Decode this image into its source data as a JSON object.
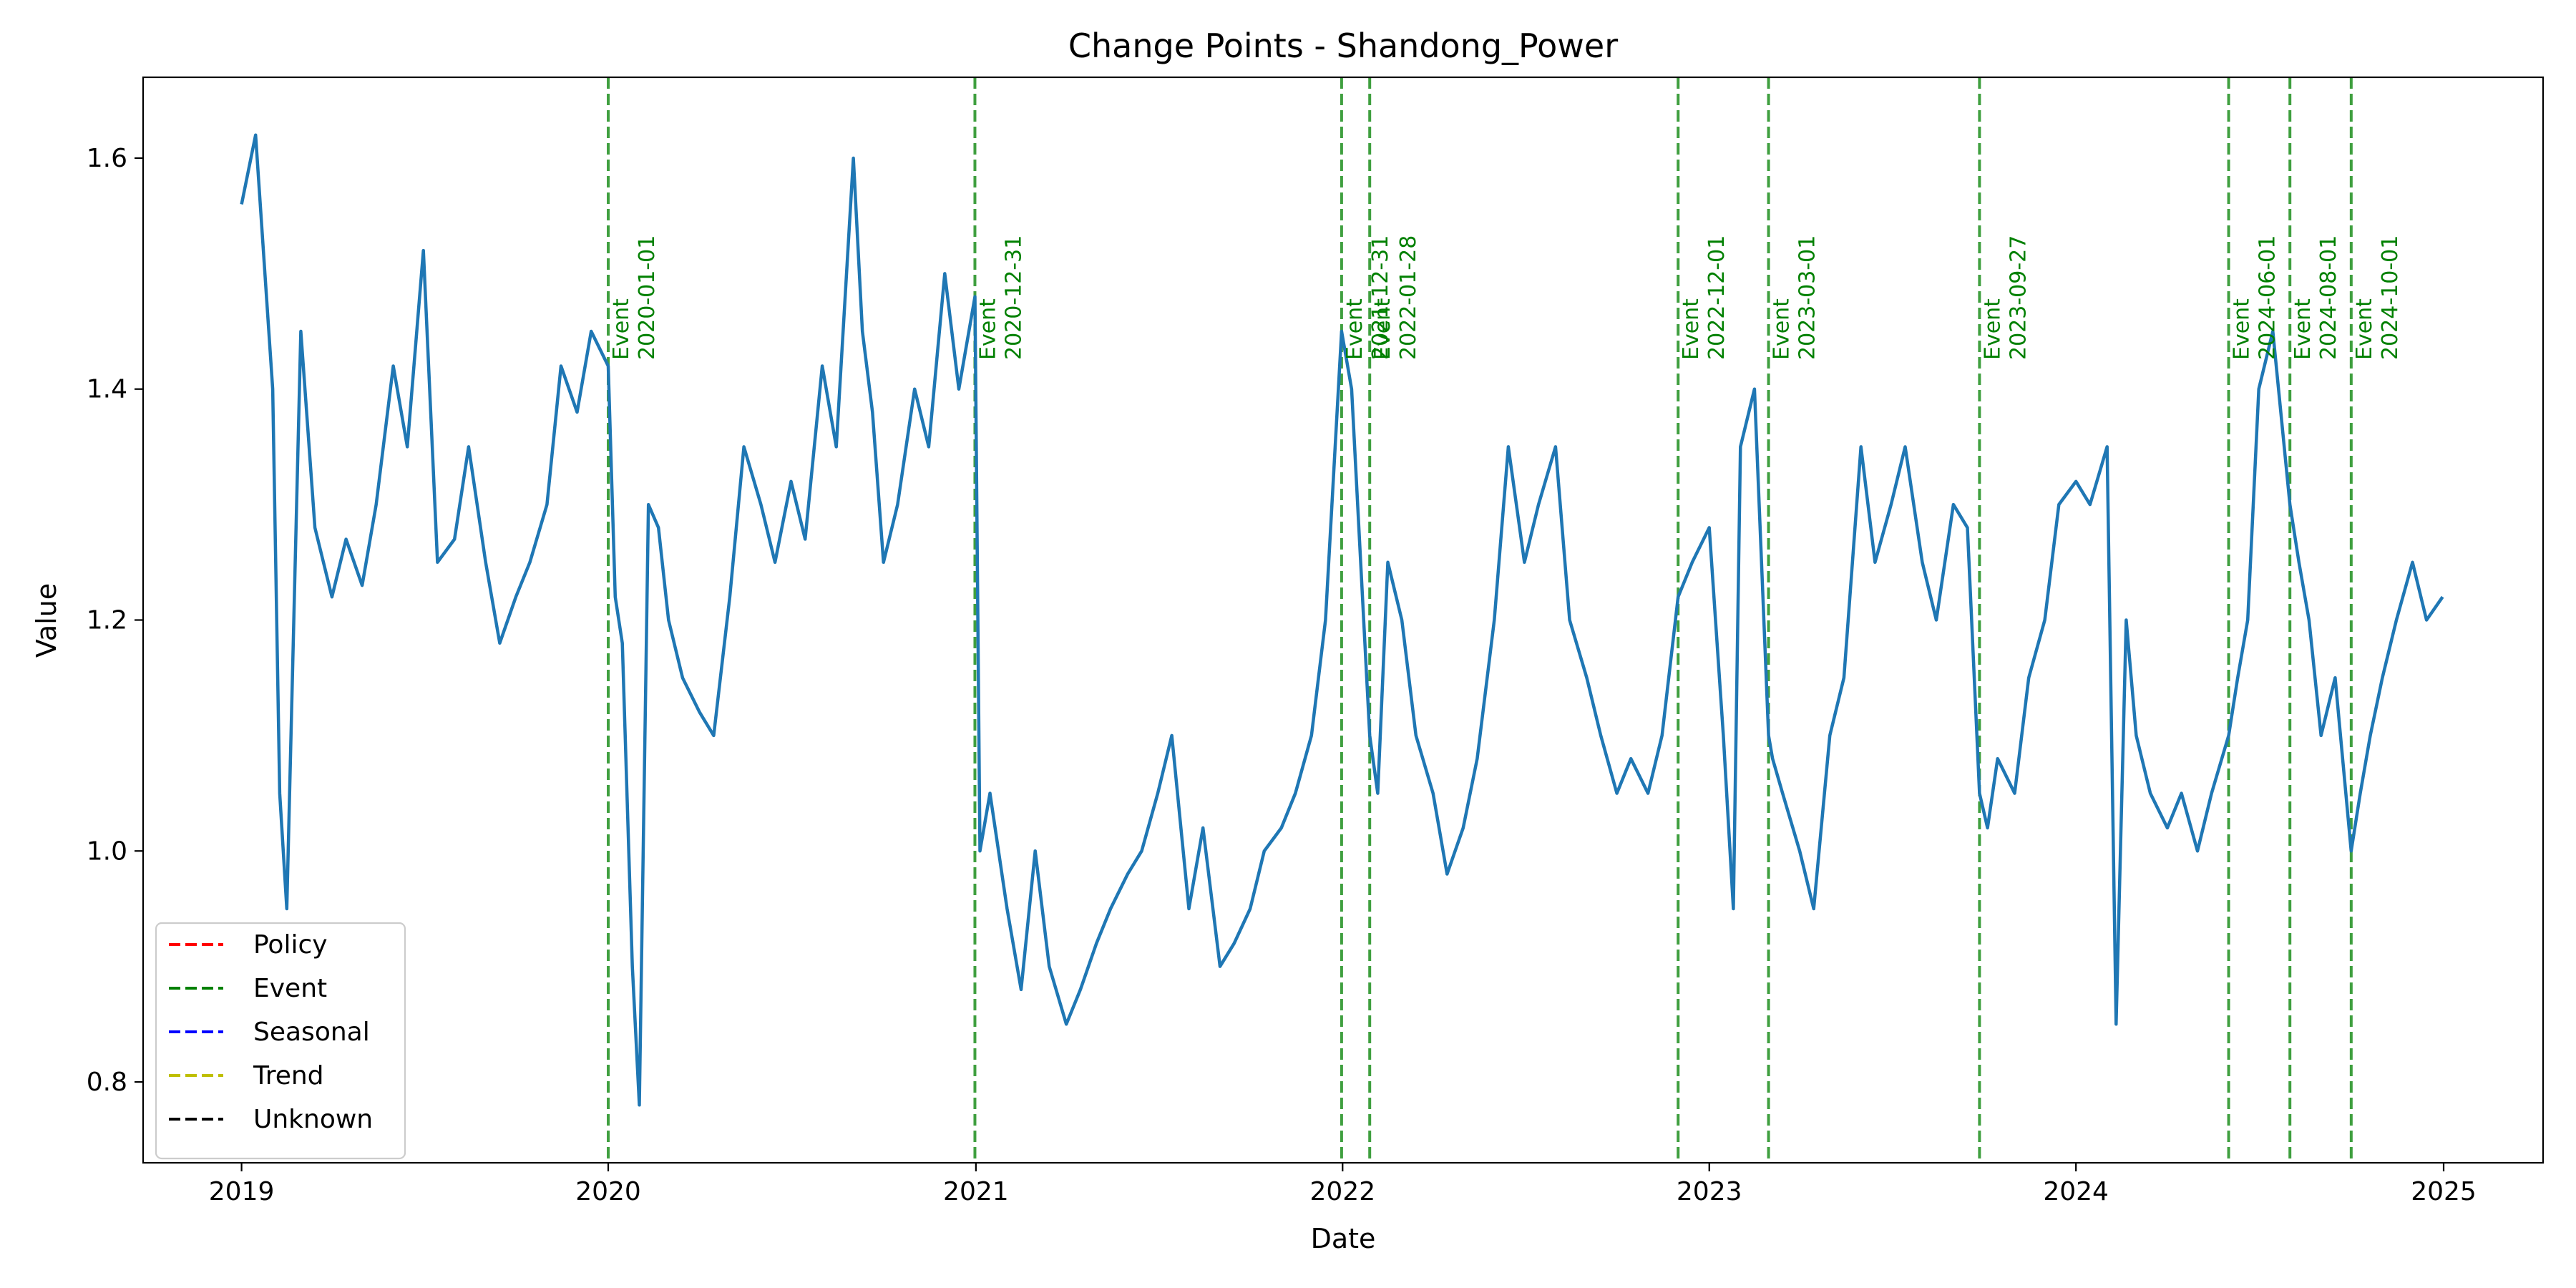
{
  "chart_data": {
    "type": "line",
    "title": "Change Points - Shandong_Power",
    "xlabel": "Date",
    "ylabel": "Value",
    "xlim": [
      "2018-09-25",
      "2025-04-10"
    ],
    "ylim": [
      0.73,
      1.67
    ],
    "x_ticks": [
      "2019",
      "2020",
      "2021",
      "2022",
      "2023",
      "2024",
      "2025"
    ],
    "y_ticks": [
      "0.8",
      "1.0",
      "1.2",
      "1.4",
      "1.6"
    ],
    "grid": false,
    "legend": {
      "placement": "lower-left",
      "entries": [
        {
          "label": "Policy",
          "color": "#ff0000"
        },
        {
          "label": "Event",
          "color": "#008000"
        },
        {
          "label": "Seasonal",
          "color": "#0000ff"
        },
        {
          "label": "Trend",
          "color": "#bfbf00"
        },
        {
          "label": "Unknown",
          "color": "#000000"
        }
      ]
    },
    "series": [
      {
        "color": "#1f77b4",
        "x": [
          "2019-01-01",
          "2019-01-15",
          "2019-02-01",
          "2019-02-08",
          "2019-02-15",
          "2019-03-01",
          "2019-03-15",
          "2019-04-01",
          "2019-04-15",
          "2019-05-01",
          "2019-05-15",
          "2019-06-01",
          "2019-06-15",
          "2019-07-01",
          "2019-07-15",
          "2019-08-01",
          "2019-08-15",
          "2019-09-01",
          "2019-09-15",
          "2019-10-01",
          "2019-10-15",
          "2019-11-01",
          "2019-11-15",
          "2019-12-01",
          "2019-12-15",
          "2020-01-01",
          "2020-01-08",
          "2020-01-15",
          "2020-01-25",
          "2020-02-01",
          "2020-02-10",
          "2020-02-20",
          "2020-03-01",
          "2020-03-15",
          "2020-04-01",
          "2020-04-15",
          "2020-05-01",
          "2020-05-15",
          "2020-06-01",
          "2020-06-15",
          "2020-07-01",
          "2020-07-15",
          "2020-08-01",
          "2020-08-15",
          "2020-09-01",
          "2020-09-10",
          "2020-09-20",
          "2020-10-01",
          "2020-10-15",
          "2020-11-01",
          "2020-11-15",
          "2020-12-01",
          "2020-12-15",
          "2020-12-31",
          "2021-01-05",
          "2021-01-15",
          "2021-02-01",
          "2021-02-15",
          "2021-03-01",
          "2021-03-15",
          "2021-04-01",
          "2021-04-15",
          "2021-05-01",
          "2021-05-15",
          "2021-06-01",
          "2021-06-15",
          "2021-07-01",
          "2021-07-15",
          "2021-08-01",
          "2021-08-15",
          "2021-09-01",
          "2021-09-15",
          "2021-10-01",
          "2021-10-15",
          "2021-11-01",
          "2021-11-15",
          "2021-12-01",
          "2021-12-15",
          "2021-12-31",
          "2022-01-10",
          "2022-01-28",
          "2022-02-05",
          "2022-02-15",
          "2022-03-01",
          "2022-03-15",
          "2022-04-01",
          "2022-04-15",
          "2022-05-01",
          "2022-05-15",
          "2022-06-01",
          "2022-06-15",
          "2022-07-01",
          "2022-07-15",
          "2022-08-01",
          "2022-08-15",
          "2022-09-01",
          "2022-09-15",
          "2022-10-01",
          "2022-10-15",
          "2022-11-01",
          "2022-11-15",
          "2022-12-01",
          "2022-12-15",
          "2023-01-01",
          "2023-01-15",
          "2023-01-25",
          "2023-02-01",
          "2023-02-15",
          "2023-03-01",
          "2023-03-05",
          "2023-03-15",
          "2023-04-01",
          "2023-04-15",
          "2023-05-01",
          "2023-05-15",
          "2023-06-01",
          "2023-06-15",
          "2023-07-01",
          "2023-07-15",
          "2023-08-01",
          "2023-08-15",
          "2023-09-01",
          "2023-09-15",
          "2023-09-27",
          "2023-10-05",
          "2023-10-15",
          "2023-11-01",
          "2023-11-15",
          "2023-12-01",
          "2023-12-15",
          "2024-01-01",
          "2024-01-15",
          "2024-02-01",
          "2024-02-10",
          "2024-02-20",
          "2024-03-01",
          "2024-03-15",
          "2024-04-01",
          "2024-04-15",
          "2024-05-01",
          "2024-05-15",
          "2024-06-01",
          "2024-06-10",
          "2024-06-20",
          "2024-07-01",
          "2024-07-15",
          "2024-08-01",
          "2024-08-10",
          "2024-08-20",
          "2024-09-01",
          "2024-09-15",
          "2024-10-01",
          "2024-10-10",
          "2024-10-20",
          "2024-11-01",
          "2024-11-15",
          "2024-12-01",
          "2024-12-15",
          "2024-12-31"
        ],
        "y": [
          1.56,
          1.62,
          1.4,
          1.05,
          0.95,
          1.45,
          1.28,
          1.22,
          1.27,
          1.23,
          1.3,
          1.42,
          1.35,
          1.52,
          1.25,
          1.27,
          1.35,
          1.25,
          1.18,
          1.22,
          1.25,
          1.3,
          1.42,
          1.38,
          1.45,
          1.42,
          1.22,
          1.18,
          0.9,
          0.78,
          1.3,
          1.28,
          1.2,
          1.15,
          1.12,
          1.1,
          1.22,
          1.35,
          1.3,
          1.25,
          1.32,
          1.27,
          1.42,
          1.35,
          1.6,
          1.45,
          1.38,
          1.25,
          1.3,
          1.4,
          1.35,
          1.5,
          1.4,
          1.48,
          1.0,
          1.05,
          0.95,
          0.88,
          1.0,
          0.9,
          0.85,
          0.88,
          0.92,
          0.95,
          0.98,
          1.0,
          1.05,
          1.1,
          0.95,
          1.02,
          0.9,
          0.92,
          0.95,
          1.0,
          1.02,
          1.05,
          1.1,
          1.2,
          1.45,
          1.4,
          1.1,
          1.05,
          1.25,
          1.2,
          1.1,
          1.05,
          0.98,
          1.02,
          1.08,
          1.2,
          1.35,
          1.25,
          1.3,
          1.35,
          1.2,
          1.15,
          1.1,
          1.05,
          1.08,
          1.05,
          1.1,
          1.22,
          1.25,
          1.28,
          1.1,
          0.95,
          1.35,
          1.4,
          1.1,
          1.08,
          1.05,
          1.0,
          0.95,
          1.1,
          1.15,
          1.35,
          1.25,
          1.3,
          1.35,
          1.25,
          1.2,
          1.3,
          1.28,
          1.05,
          1.02,
          1.08,
          1.05,
          1.15,
          1.2,
          1.3,
          1.32,
          1.3,
          1.35,
          0.85,
          1.2,
          1.1,
          1.05,
          1.02,
          1.05,
          1.0,
          1.05,
          1.1,
          1.15,
          1.2,
          1.4,
          1.45,
          1.3,
          1.25,
          1.2,
          1.1,
          1.15,
          1.0,
          1.05,
          1.1,
          1.15,
          1.2,
          1.25,
          1.2,
          1.22
        ]
      }
    ],
    "change_points": [
      {
        "date": "2020-01-01",
        "type": "Event",
        "label": "Event\n2020-01-01",
        "color": "#008000"
      },
      {
        "date": "2020-12-31",
        "type": "Event",
        "label": "Event\n2020-12-31",
        "color": "#008000"
      },
      {
        "date": "2021-12-31",
        "type": "Event",
        "label": "Event\n2021-12-31",
        "color": "#008000"
      },
      {
        "date": "2022-01-28",
        "type": "Event",
        "label": "Event\n2022-01-28",
        "color": "#008000"
      },
      {
        "date": "2022-12-01",
        "type": "Event",
        "label": "Event\n2022-12-01",
        "color": "#008000"
      },
      {
        "date": "2023-03-01",
        "type": "Event",
        "label": "Event\n2023-03-01",
        "color": "#008000"
      },
      {
        "date": "2023-09-27",
        "type": "Event",
        "label": "Event\n2023-09-27",
        "color": "#008000"
      },
      {
        "date": "2024-06-01",
        "type": "Event",
        "label": "Event\n2024-06-01",
        "color": "#008000"
      },
      {
        "date": "2024-08-01",
        "type": "Event",
        "label": "Event\n2024-08-01",
        "color": "#008000"
      },
      {
        "date": "2024-10-01",
        "type": "Event",
        "label": "Event\n2024-10-01",
        "color": "#008000"
      }
    ]
  }
}
